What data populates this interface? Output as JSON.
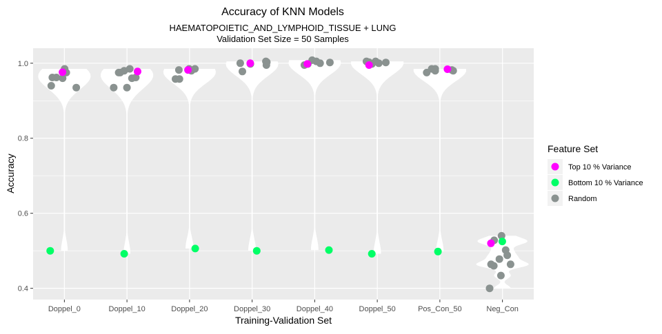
{
  "chart_data": {
    "type": "scatter",
    "title": "Accuracy of KNN Models",
    "subtitle_line1": "HAEMATOPOIETIC_AND_LYMPHOID_TISSUE + LUNG",
    "subtitle_line2": "Validation Set Size = 50 Samples",
    "xlabel": "Training-Validation Set",
    "ylabel": "Accuracy",
    "ylim": [
      0.37,
      1.04
    ],
    "yticks": [
      0.4,
      0.6,
      0.8,
      1.0
    ],
    "ytick_labels": [
      "0.4",
      "0.6",
      "0.8",
      "1.0"
    ],
    "grid": true,
    "legend_position": "right",
    "legend_title": "Feature Set",
    "colors": {
      "panel": "#EBEBEB",
      "violin": "#FFFFFF",
      "Top 10 % Variance": "#FF00FF",
      "Bottom 10 % Variance": "#00FF66",
      "Random": "#8A9290"
    },
    "categories": [
      "Doppel_0",
      "Doppel_10",
      "Doppel_20",
      "Doppel_30",
      "Doppel_40",
      "Doppel_50",
      "Pos_Con_50",
      "Neg_Con"
    ],
    "series": [
      {
        "name": "Top 10 % Variance",
        "points": [
          {
            "cat": "Doppel_0",
            "y": 0.976
          },
          {
            "cat": "Doppel_10",
            "y": 0.978
          },
          {
            "cat": "Doppel_20",
            "y": 0.982
          },
          {
            "cat": "Doppel_30",
            "y": 1.0
          },
          {
            "cat": "Doppel_40",
            "y": 0.998
          },
          {
            "cat": "Doppel_50",
            "y": 0.995
          },
          {
            "cat": "Pos_Con_50",
            "y": 0.984
          },
          {
            "cat": "Neg_Con",
            "y": 0.52
          }
        ]
      },
      {
        "name": "Bottom 10 % Variance",
        "points": [
          {
            "cat": "Doppel_0",
            "y": 0.5
          },
          {
            "cat": "Doppel_10",
            "y": 0.492
          },
          {
            "cat": "Doppel_20",
            "y": 0.506
          },
          {
            "cat": "Doppel_30",
            "y": 0.5
          },
          {
            "cat": "Doppel_40",
            "y": 0.502
          },
          {
            "cat": "Doppel_50",
            "y": 0.492
          },
          {
            "cat": "Pos_Con_50",
            "y": 0.498
          },
          {
            "cat": "Neg_Con",
            "y": 0.525
          }
        ]
      },
      {
        "name": "Random",
        "points": [
          {
            "cat": "Doppel_0",
            "y": 0.98
          },
          {
            "cat": "Doppel_0",
            "y": 0.975
          },
          {
            "cat": "Doppel_0",
            "y": 0.962
          },
          {
            "cat": "Doppel_0",
            "y": 0.962
          },
          {
            "cat": "Doppel_0",
            "y": 0.96
          },
          {
            "cat": "Doppel_0",
            "y": 0.985
          },
          {
            "cat": "Doppel_0",
            "y": 0.94
          },
          {
            "cat": "Doppel_0",
            "y": 0.935
          },
          {
            "cat": "Doppel_10",
            "y": 0.985
          },
          {
            "cat": "Doppel_10",
            "y": 0.98
          },
          {
            "cat": "Doppel_10",
            "y": 0.975
          },
          {
            "cat": "Doppel_10",
            "y": 0.962
          },
          {
            "cat": "Doppel_10",
            "y": 0.96
          },
          {
            "cat": "Doppel_10",
            "y": 0.935
          },
          {
            "cat": "Doppel_10",
            "y": 0.935
          },
          {
            "cat": "Doppel_10",
            "y": 0.975
          },
          {
            "cat": "Doppel_20",
            "y": 0.985
          },
          {
            "cat": "Doppel_20",
            "y": 0.982
          },
          {
            "cat": "Doppel_20",
            "y": 0.98
          },
          {
            "cat": "Doppel_20",
            "y": 0.985
          },
          {
            "cat": "Doppel_20",
            "y": 0.958
          },
          {
            "cat": "Doppel_20",
            "y": 0.958
          },
          {
            "cat": "Doppel_30",
            "y": 1.005
          },
          {
            "cat": "Doppel_30",
            "y": 1.003
          },
          {
            "cat": "Doppel_30",
            "y": 1.0
          },
          {
            "cat": "Doppel_30",
            "y": 0.998
          },
          {
            "cat": "Doppel_30",
            "y": 0.995
          },
          {
            "cat": "Doppel_30",
            "y": 0.978
          },
          {
            "cat": "Doppel_40",
            "y": 1.008
          },
          {
            "cat": "Doppel_40",
            "y": 1.005
          },
          {
            "cat": "Doppel_40",
            "y": 1.0
          },
          {
            "cat": "Doppel_40",
            "y": 0.998
          },
          {
            "cat": "Doppel_40",
            "y": 0.995
          },
          {
            "cat": "Doppel_40",
            "y": 1.002
          },
          {
            "cat": "Doppel_50",
            "y": 1.005
          },
          {
            "cat": "Doppel_50",
            "y": 1.003
          },
          {
            "cat": "Doppel_50",
            "y": 1.0
          },
          {
            "cat": "Doppel_50",
            "y": 0.998
          },
          {
            "cat": "Doppel_50",
            "y": 1.005
          },
          {
            "cat": "Doppel_50",
            "y": 1.002
          },
          {
            "cat": "Pos_Con_50",
            "y": 0.985
          },
          {
            "cat": "Pos_Con_50",
            "y": 0.98
          },
          {
            "cat": "Pos_Con_50",
            "y": 0.975
          },
          {
            "cat": "Pos_Con_50",
            "y": 0.98
          },
          {
            "cat": "Pos_Con_50",
            "y": 0.985
          },
          {
            "cat": "Pos_Con_50",
            "y": 0.982
          },
          {
            "cat": "Neg_Con",
            "y": 0.54
          },
          {
            "cat": "Neg_Con",
            "y": 0.528
          },
          {
            "cat": "Neg_Con",
            "y": 0.502
          },
          {
            "cat": "Neg_Con",
            "y": 0.478
          },
          {
            "cat": "Neg_Con",
            "y": 0.464
          },
          {
            "cat": "Neg_Con",
            "y": 0.488
          },
          {
            "cat": "Neg_Con",
            "y": 0.464
          },
          {
            "cat": "Neg_Con",
            "y": 0.46
          },
          {
            "cat": "Neg_Con",
            "y": 0.434
          },
          {
            "cat": "Neg_Con",
            "y": 0.4
          }
        ]
      }
    ]
  }
}
